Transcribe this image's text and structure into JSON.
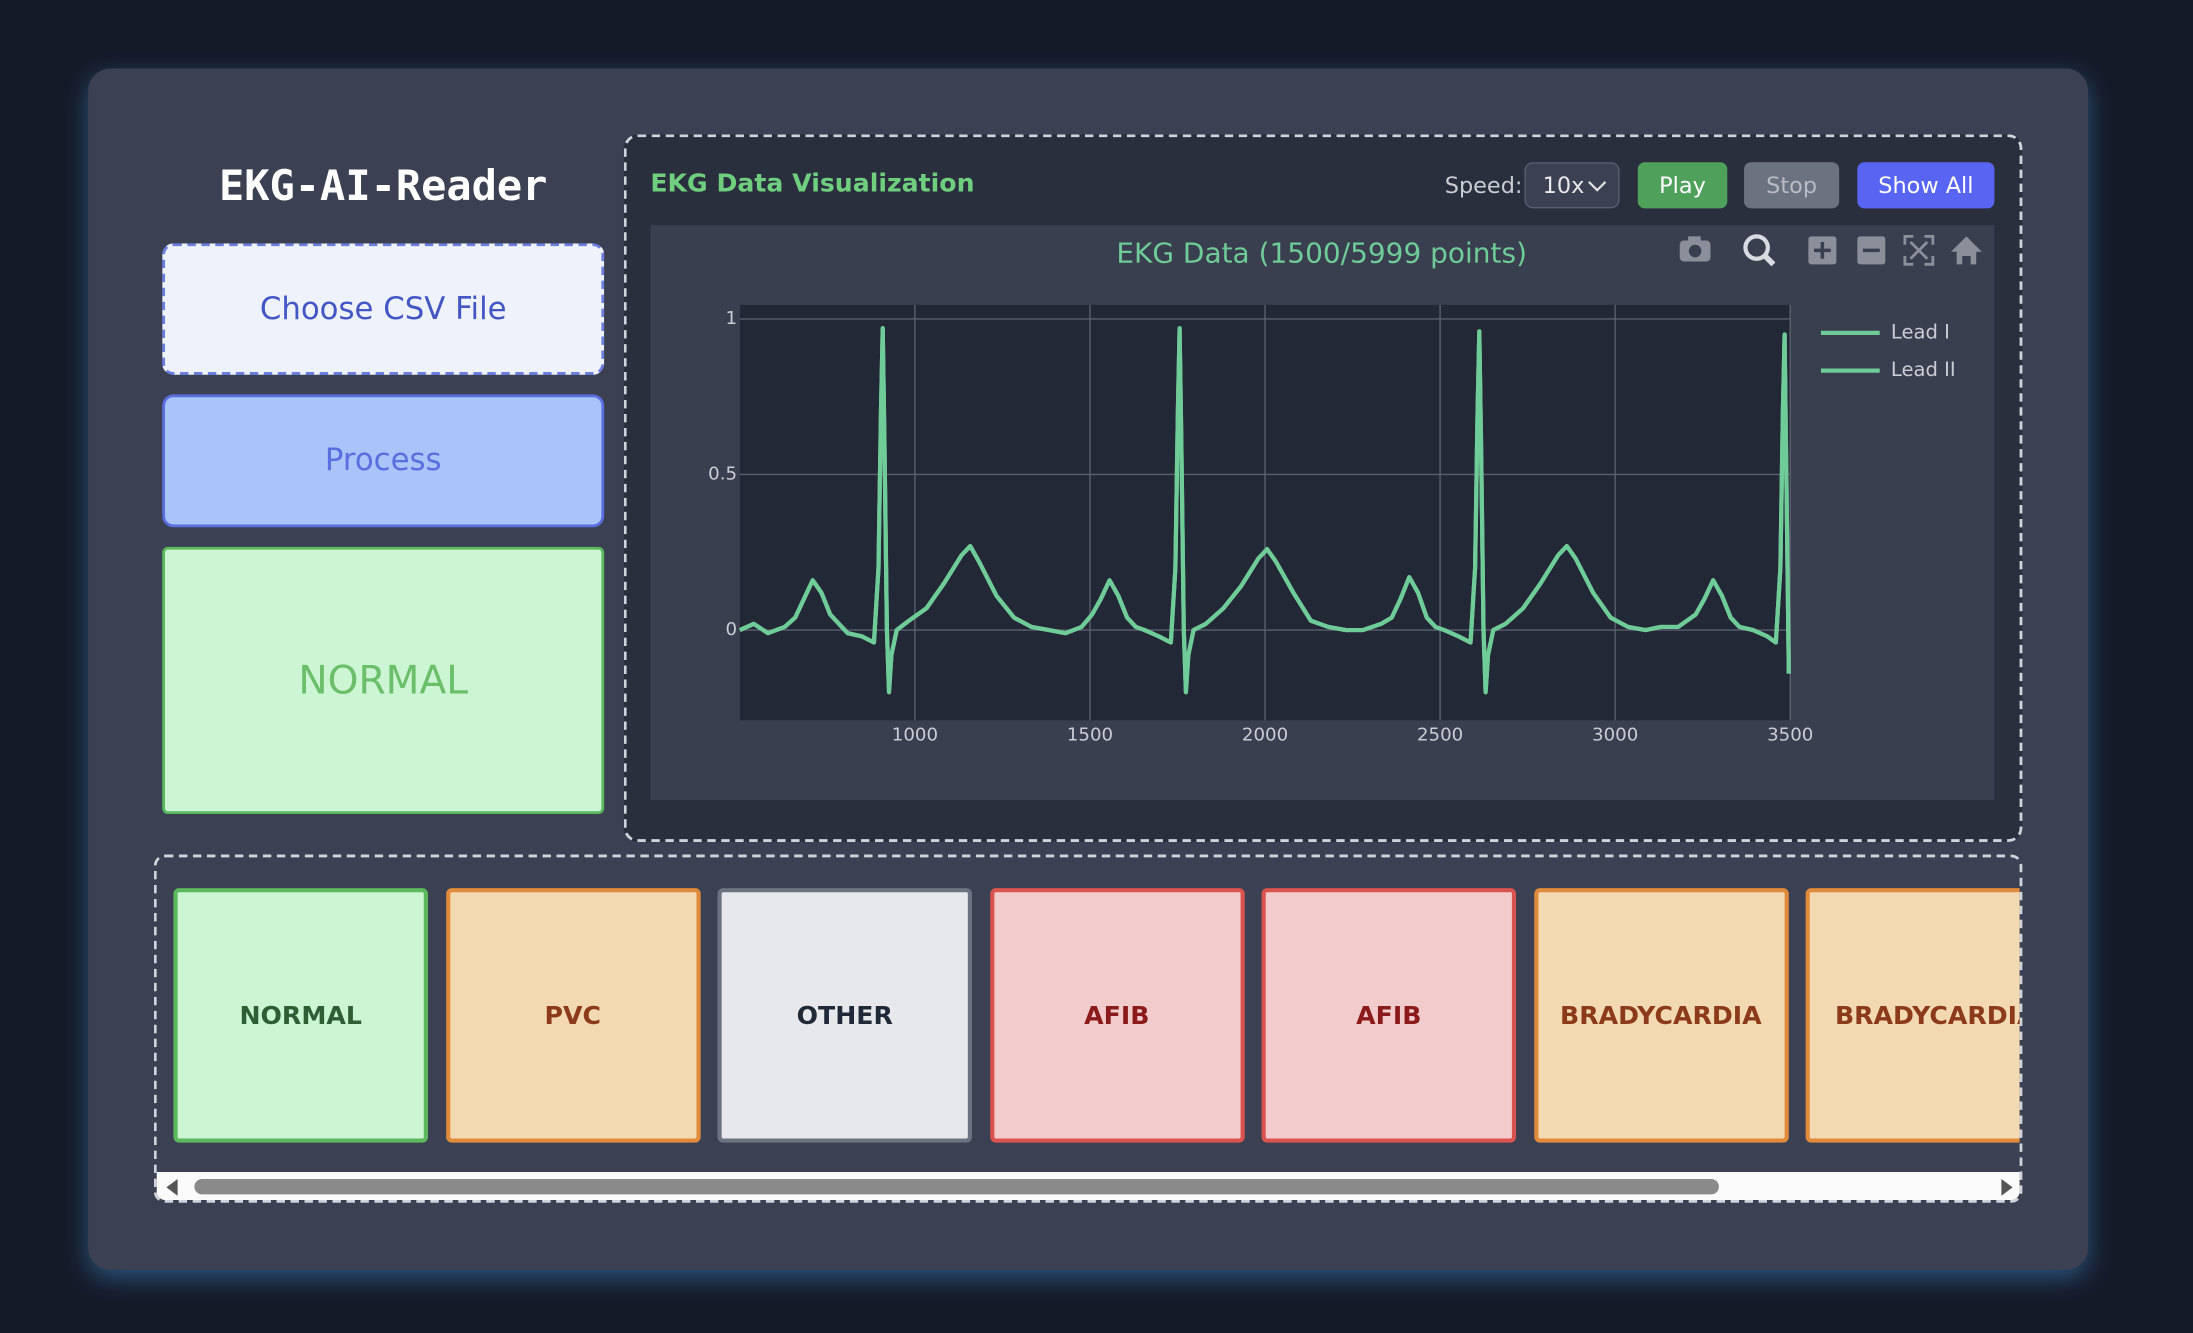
{
  "app": {
    "title": "EKG-AI-Reader",
    "choose_file": "Choose CSV File",
    "process": "Process",
    "status": "NORMAL"
  },
  "visualization": {
    "title": "EKG Data Visualization",
    "speed_label": "Speed:",
    "speed": "10x",
    "buttons": [
      "Play",
      "Stop",
      "Show All"
    ]
  },
  "chart_data": {
    "type": "line",
    "title": "EKG Data (1500/5999 points)",
    "x": [
      500,
      540,
      580,
      628,
      658,
      683,
      708,
      733,
      758,
      783,
      808,
      848,
      883,
      896,
      903,
      908,
      913,
      920,
      926,
      933,
      948,
      983,
      1033,
      1083,
      1133,
      1158,
      1183,
      1233,
      1283,
      1333,
      1383,
      1430,
      1476,
      1506,
      1531,
      1556,
      1581,
      1606,
      1631,
      1656,
      1696,
      1731,
      1744,
      1751,
      1756,
      1761,
      1768,
      1774,
      1781,
      1796,
      1831,
      1881,
      1931,
      1981,
      2006,
      2031,
      2081,
      2131,
      2181,
      2231,
      2280,
      2332,
      2362,
      2387,
      2412,
      2437,
      2462,
      2487,
      2512,
      2552,
      2587,
      2600,
      2607,
      2612,
      2617,
      2624,
      2630,
      2637,
      2652,
      2687,
      2737,
      2787,
      2837,
      2862,
      2887,
      2937,
      2987,
      3037,
      3087,
      3130,
      3180,
      3230,
      3255,
      3280,
      3305,
      3330,
      3355,
      3394,
      3434,
      3459,
      3472,
      3479,
      3484,
      3489,
      3496
    ],
    "series": [
      {
        "name": "Lead I",
        "color": "#6fcb97",
        "values": [
          0.0,
          0.02,
          -0.01,
          0.01,
          0.04,
          0.1,
          0.16,
          0.12,
          0.05,
          0.02,
          -0.01,
          -0.02,
          -0.04,
          0.2,
          0.7,
          0.97,
          0.6,
          0.0,
          -0.2,
          -0.08,
          0.0,
          0.03,
          0.07,
          0.15,
          0.24,
          0.27,
          0.22,
          0.11,
          0.04,
          0.01,
          0.0,
          -0.01,
          0.01,
          0.05,
          0.1,
          0.16,
          0.11,
          0.04,
          0.01,
          0.0,
          -0.02,
          -0.04,
          0.2,
          0.7,
          0.97,
          0.6,
          0.0,
          -0.2,
          -0.08,
          0.0,
          0.02,
          0.07,
          0.14,
          0.23,
          0.26,
          0.22,
          0.12,
          0.03,
          0.01,
          0.0,
          0.0,
          0.02,
          0.04,
          0.1,
          0.17,
          0.12,
          0.04,
          0.01,
          0.0,
          -0.02,
          -0.04,
          0.2,
          0.7,
          0.96,
          0.6,
          0.0,
          -0.2,
          -0.08,
          0.0,
          0.02,
          0.07,
          0.15,
          0.24,
          0.27,
          0.23,
          0.12,
          0.04,
          0.01,
          0.0,
          0.01,
          0.01,
          0.05,
          0.1,
          0.16,
          0.11,
          0.04,
          0.01,
          0.0,
          -0.02,
          -0.04,
          0.2,
          0.7,
          0.95,
          0.5,
          -0.14
        ]
      },
      {
        "name": "Lead II",
        "color": "#6fcb97",
        "values": [
          0.0,
          0.02,
          -0.01,
          0.01,
          0.04,
          0.1,
          0.16,
          0.12,
          0.05,
          0.02,
          -0.01,
          -0.02,
          -0.04,
          0.2,
          0.7,
          0.97,
          0.6,
          0.0,
          -0.2,
          -0.08,
          0.0,
          0.03,
          0.07,
          0.15,
          0.24,
          0.27,
          0.22,
          0.11,
          0.04,
          0.01,
          0.0,
          -0.01,
          0.01,
          0.05,
          0.1,
          0.16,
          0.11,
          0.04,
          0.01,
          0.0,
          -0.02,
          -0.04,
          0.2,
          0.7,
          0.97,
          0.6,
          0.0,
          -0.2,
          -0.08,
          0.0,
          0.02,
          0.07,
          0.14,
          0.23,
          0.26,
          0.22,
          0.12,
          0.03,
          0.01,
          0.0,
          0.0,
          0.02,
          0.04,
          0.1,
          0.17,
          0.12,
          0.04,
          0.01,
          0.0,
          -0.02,
          -0.04,
          0.2,
          0.7,
          0.96,
          0.6,
          0.0,
          -0.2,
          -0.08,
          0.0,
          0.02,
          0.07,
          0.15,
          0.24,
          0.27,
          0.23,
          0.12,
          0.04,
          0.01,
          0.0,
          0.01,
          0.01,
          0.05,
          0.1,
          0.16,
          0.11,
          0.04,
          0.01,
          0.0,
          -0.02,
          -0.04,
          0.2,
          0.7,
          0.95,
          0.5,
          -0.14
        ]
      }
    ],
    "xlim": [
      500,
      3500
    ],
    "ylim": [
      -0.29,
      1.045
    ],
    "xticks": [
      1000,
      1500,
      2000,
      2500,
      3000,
      3500
    ],
    "yticks": [
      0,
      0.5,
      1
    ],
    "grid": true,
    "legend": "top-right"
  },
  "results": [
    "NORMAL",
    "PVC",
    "OTHER",
    "AFIB",
    "AFIB",
    "BRADYCARDIA",
    "BRADYCARDIA"
  ]
}
